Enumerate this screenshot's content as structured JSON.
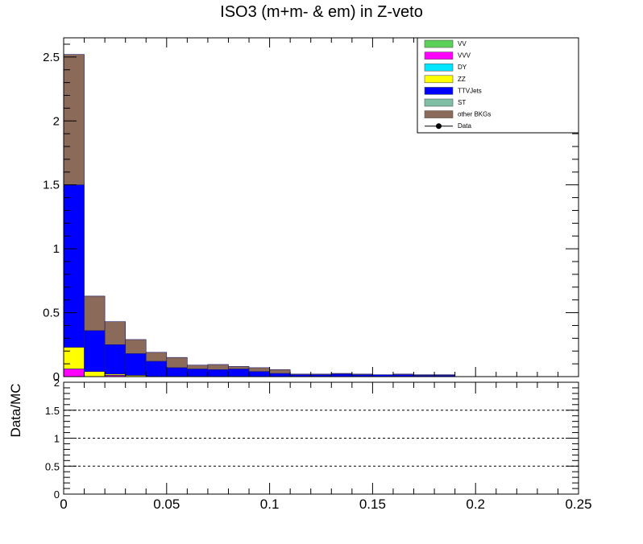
{
  "chart_data": {
    "type": "bar",
    "title": "ISO3 (m+m- & em) in Z-veto",
    "ratio_ylabel": "Data/MC",
    "x_range": [
      0,
      0.25
    ],
    "bin_width": 0.01,
    "y_range": [
      0,
      2.65
    ],
    "ratio_range": [
      0,
      2
    ],
    "yticks": [
      "0",
      "0.5",
      "1",
      "1.5",
      "2",
      "2.5"
    ],
    "ratio_yticks": [
      "0",
      "0.5",
      "1",
      "1.5",
      "2"
    ],
    "xticks": [
      "0",
      "0.05",
      "0.1",
      "0.15",
      "0.2",
      "0.25"
    ],
    "ratio_reference_lines": [
      0.5,
      1,
      1.5
    ],
    "legend_position": "top-right",
    "legend": [
      {
        "label": "VV",
        "color": "#5ad25a",
        "kind": "box"
      },
      {
        "label": "VVV",
        "color": "#ff00ff",
        "kind": "box"
      },
      {
        "label": "DY",
        "color": "#00e6ff",
        "kind": "box"
      },
      {
        "label": "ZZ",
        "color": "#ffff00",
        "kind": "box"
      },
      {
        "label": "TTVJets",
        "color": "#0000ff",
        "kind": "box"
      },
      {
        "label": "ST",
        "color": "#7fbfa5",
        "kind": "box"
      },
      {
        "label": "other BKGs",
        "color": "#8c6a5a",
        "kind": "box"
      },
      {
        "label": "Data",
        "color": "#000000",
        "kind": "marker"
      }
    ],
    "series": [
      {
        "name": "VVV",
        "color": "#ff00ff",
        "values": [
          0.06,
          0.0,
          0.01,
          0.0,
          0.0,
          0.0,
          0.0,
          0.0,
          0.0,
          0.0,
          0.0,
          0.0,
          0.0,
          0.0,
          0.0,
          0.0,
          0.0,
          0.0,
          0.0,
          0.0
        ]
      },
      {
        "name": "ZZ",
        "color": "#ffff00",
        "values": [
          0.17,
          0.04,
          0.01,
          0.01,
          0.0,
          0.0,
          0.0,
          0.0,
          0.0,
          0.0,
          0.0,
          0.0,
          0.0,
          0.0,
          0.0,
          0.0,
          0.0,
          0.0,
          0.0,
          0.0
        ]
      },
      {
        "name": "TTVJets",
        "color": "#0000ff",
        "values": [
          1.27,
          0.32,
          0.23,
          0.17,
          0.12,
          0.07,
          0.06,
          0.055,
          0.06,
          0.04,
          0.025,
          0.015,
          0.015,
          0.02,
          0.015,
          0.015,
          0.015,
          0.01,
          0.01,
          0.0
        ]
      },
      {
        "name": "other BKGs",
        "color": "#8c6a5a",
        "values": [
          1.02,
          0.27,
          0.18,
          0.11,
          0.07,
          0.08,
          0.03,
          0.04,
          0.02,
          0.03,
          0.03,
          0.005,
          0.005,
          0.005,
          0.005,
          0.0,
          0.005,
          0.005,
          0.005,
          0.0
        ]
      }
    ]
  }
}
